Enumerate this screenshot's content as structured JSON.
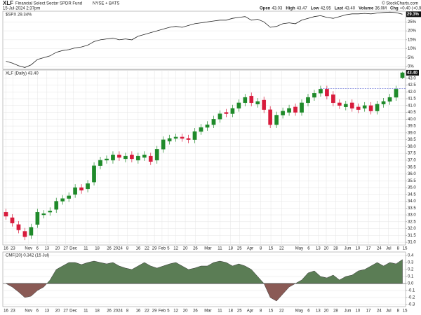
{
  "header": {
    "symbol": "XLF",
    "name": "Financial Select Sector SPDR Fund",
    "exchange": "NYSE + BATS",
    "source": "© StockCharts.com",
    "timestamp": "15-Jul-2024 2:37pm",
    "quote": [
      {
        "label": "Open",
        "value": "43.03"
      },
      {
        "label": "High",
        "value": "43.47"
      },
      {
        "label": "Low",
        "value": "42.95"
      },
      {
        "label": "Last",
        "value": "43.40"
      },
      {
        "label": "Volume",
        "value": "36.0M"
      },
      {
        "label": "Chg",
        "value": "+0.40 (+0.93%)"
      }
    ]
  },
  "chart_data": [
    {
      "type": "line",
      "title": "$SPX 29.34%",
      "last_label": "29.3%",
      "color": "#222222",
      "xlim": [
        -0.5,
        63.5
      ],
      "ylim": [
        -1.5,
        31
      ],
      "grid": true,
      "yticks": [
        {
          "value": 25,
          "label": "25%"
        },
        {
          "value": 20,
          "label": "20%"
        },
        {
          "value": 15,
          "label": "15%"
        },
        {
          "value": 10,
          "label": "10%"
        },
        {
          "value": 5,
          "label": "5%"
        },
        {
          "value": 0,
          "label": "0%"
        }
      ],
      "series": [
        {
          "name": "$SPX",
          "values": [
            3,
            2,
            0.5,
            -0.5,
            1,
            4,
            5,
            6,
            8,
            9,
            9.5,
            10.5,
            11,
            12,
            14,
            15,
            15.5,
            16,
            15,
            15.5,
            15,
            17,
            18,
            19,
            20,
            21,
            22,
            22.5,
            22,
            23,
            24,
            24.5,
            25,
            25.5,
            26,
            26,
            27,
            27.5,
            28,
            26,
            26.5,
            25,
            22,
            22.5,
            24,
            24.5,
            24,
            26,
            27,
            28,
            28.5,
            27.5,
            27,
            28,
            29,
            29.5,
            29.5,
            29.8,
            29.5,
            30,
            30.3,
            30.5,
            30.2,
            29.3
          ]
        }
      ]
    },
    {
      "type": "candlestick",
      "title": "XLF (Daily) 43.40",
      "last_label": "43.40",
      "up_color": "#1f8a2a",
      "down_color": "#d81b3c",
      "xlim": [
        -0.5,
        63.5
      ],
      "ylim": [
        30.8,
        43.6
      ],
      "grid": true,
      "yticks": [
        {
          "value": 43,
          "label": "43.0"
        },
        42.5,
        {
          "value": 42,
          "label": "42.0"
        },
        41.5,
        {
          "value": 41,
          "label": "41.0"
        },
        40.5,
        {
          "value": 40,
          "label": "40.0"
        },
        39.5,
        {
          "value": 39,
          "label": "39.0"
        },
        38.5,
        {
          "value": 38,
          "label": "38.0"
        },
        37.5,
        {
          "value": 37,
          "label": "37.0"
        },
        36.5,
        {
          "value": 36,
          "label": "36.0"
        },
        35.5,
        {
          "value": 35,
          "label": "35.0"
        },
        34.5,
        {
          "value": 34,
          "label": "34.0"
        },
        33.5,
        {
          "value": 33,
          "label": "33.0"
        },
        32.5,
        {
          "value": 32,
          "label": "32.0"
        },
        31.5,
        {
          "value": 31,
          "label": "31.0"
        }
      ],
      "xticks": [
        {
          "value": 0,
          "label": "16"
        },
        {
          "value": 1.1,
          "label": "23"
        },
        {
          "value": 3.6,
          "label": "Nov"
        },
        {
          "value": 5,
          "label": "6"
        },
        {
          "value": 6.5,
          "label": "13"
        },
        {
          "value": 8.2,
          "label": "20"
        },
        {
          "value": 9.5,
          "label": "27"
        },
        {
          "value": 10.7,
          "label": "Dec"
        },
        {
          "value": 12.7,
          "label": "11"
        },
        {
          "value": 14.5,
          "label": "18"
        },
        {
          "value": 16.4,
          "label": "26"
        },
        {
          "value": 17.8,
          "label": "2024"
        },
        {
          "value": 19.3,
          "label": "8"
        },
        {
          "value": 21,
          "label": "16"
        },
        {
          "value": 22.4,
          "label": "22"
        },
        {
          "value": 23.6,
          "label": "29"
        },
        {
          "value": 24.8,
          "label": "Feb"
        },
        {
          "value": 25.8,
          "label": "5"
        },
        {
          "value": 27,
          "label": "12"
        },
        {
          "value": 28.5,
          "label": "20"
        },
        {
          "value": 30.1,
          "label": "26"
        },
        {
          "value": 32.1,
          "label": "Mar"
        },
        {
          "value": 34,
          "label": "11"
        },
        {
          "value": 35.7,
          "label": "18"
        },
        {
          "value": 37.1,
          "label": "25"
        },
        {
          "value": 38.8,
          "label": "Apr"
        },
        {
          "value": 40.5,
          "label": "8"
        },
        {
          "value": 42.1,
          "label": "15"
        },
        {
          "value": 43.8,
          "label": "22"
        },
        {
          "value": 46.6,
          "label": "May"
        },
        {
          "value": 48.1,
          "label": "6"
        },
        {
          "value": 49.6,
          "label": "13"
        },
        {
          "value": 50.9,
          "label": "20"
        },
        {
          "value": 52.4,
          "label": "28"
        },
        {
          "value": 54.3,
          "label": "Jun"
        },
        {
          "value": 55.9,
          "label": "10"
        },
        {
          "value": 57.6,
          "label": "17"
        },
        {
          "value": 59.3,
          "label": "24"
        },
        {
          "value": 60.8,
          "label": "Jul"
        },
        {
          "value": 62.3,
          "label": "8"
        },
        {
          "value": 63.4,
          "label": "15"
        }
      ],
      "hline": {
        "y": 42.25,
        "from": 50,
        "color": "#3340c8"
      },
      "open": [
        33.2,
        32.8,
        32.3,
        31.8,
        31.5,
        32.3,
        33.0,
        33.2,
        33.4,
        34.0,
        34.2,
        34.5,
        35.0,
        34.9,
        35.4,
        36.6,
        37.0,
        37.0,
        37.4,
        37.1,
        37.4,
        37.0,
        37.2,
        37.3,
        37.0,
        37.8,
        38.4,
        38.6,
        38.7,
        38.6,
        38.5,
        39.1,
        39.4,
        39.6,
        40.0,
        40.5,
        40.4,
        40.8,
        41.2,
        41.7,
        41.1,
        41.4,
        40.7,
        39.6,
        40.3,
        40.5,
        40.9,
        40.5,
        41.2,
        41.6,
        41.9,
        42.2,
        41.8,
        41.2,
        40.9,
        41.2,
        40.9,
        40.8,
        41.0,
        40.6,
        41.1,
        41.3,
        41.6,
        43.03
      ],
      "high": [
        33.45,
        33.05,
        32.55,
        32.05,
        32.35,
        33.45,
        33.35,
        33.55,
        34.25,
        34.45,
        34.65,
        35.25,
        35.25,
        35.55,
        36.85,
        37.25,
        37.35,
        37.65,
        37.65,
        37.55,
        37.65,
        37.55,
        37.65,
        37.55,
        38.05,
        38.75,
        38.85,
        38.95,
        38.95,
        38.85,
        39.35,
        39.65,
        39.85,
        40.25,
        40.65,
        40.75,
        41.05,
        41.45,
        41.85,
        41.95,
        41.55,
        41.65,
        40.95,
        40.55,
        40.85,
        41.05,
        41.15,
        41.45,
        41.85,
        42.15,
        42.45,
        42.45,
        42.05,
        41.45,
        41.35,
        41.45,
        41.15,
        41.25,
        41.25,
        41.35,
        41.55,
        41.85,
        42.45,
        43.47
      ],
      "low": [
        32.65,
        32.15,
        31.65,
        31.15,
        31.25,
        32.05,
        32.75,
        32.95,
        33.15,
        33.75,
        33.95,
        34.25,
        34.55,
        34.65,
        35.15,
        36.35,
        36.75,
        36.75,
        36.95,
        36.85,
        36.85,
        36.75,
        36.95,
        36.65,
        36.75,
        37.55,
        38.15,
        38.35,
        38.35,
        38.25,
        38.25,
        38.85,
        39.15,
        39.35,
        39.75,
        40.15,
        40.15,
        40.55,
        40.95,
        40.95,
        40.85,
        40.45,
        39.35,
        39.35,
        40.05,
        40.25,
        40.25,
        40.25,
        40.95,
        41.35,
        41.65,
        41.45,
        40.95,
        40.75,
        40.65,
        40.55,
        40.45,
        40.55,
        40.35,
        40.35,
        40.85,
        41.05,
        41.35,
        42.95
      ],
      "close": [
        32.9,
        32.4,
        31.9,
        31.4,
        32.1,
        33.2,
        33.1,
        33.3,
        34.0,
        34.2,
        34.4,
        35.0,
        34.8,
        35.3,
        36.6,
        37.0,
        37.1,
        37.4,
        37.2,
        37.3,
        37.1,
        37.3,
        37.4,
        36.9,
        37.8,
        38.5,
        38.6,
        38.7,
        38.6,
        38.5,
        39.1,
        39.4,
        39.6,
        40.0,
        40.4,
        40.4,
        40.8,
        41.2,
        41.6,
        41.2,
        41.3,
        40.7,
        39.6,
        40.3,
        40.6,
        40.8,
        40.5,
        41.2,
        41.6,
        41.9,
        42.2,
        41.7,
        41.2,
        41.0,
        41.1,
        40.8,
        40.7,
        41.0,
        40.6,
        41.1,
        41.3,
        41.6,
        42.2,
        43.4
      ]
    },
    {
      "type": "area",
      "title": "CMF(20) 0.342 (15 Jul)",
      "pos_color": "#5b7d55",
      "neg_color": "#8a5a55",
      "xlim": [
        -0.5,
        63.5
      ],
      "ylim": [
        -0.33,
        0.45
      ],
      "grid": true,
      "yticks": [
        0.4,
        0.3,
        0.2,
        0.1,
        {
          "value": 0,
          "label": "0.0"
        },
        -0.1,
        -0.2,
        -0.3
      ],
      "values": [
        0.0,
        -0.05,
        -0.12,
        -0.2,
        -0.18,
        -0.1,
        -0.05,
        0.05,
        0.2,
        0.25,
        0.3,
        0.3,
        0.27,
        0.3,
        0.32,
        0.3,
        0.28,
        0.3,
        0.25,
        0.22,
        0.2,
        0.25,
        0.3,
        0.25,
        0.22,
        0.25,
        0.28,
        0.3,
        0.25,
        0.2,
        0.22,
        0.25,
        0.25,
        0.3,
        0.32,
        0.3,
        0.25,
        0.28,
        0.25,
        0.2,
        0.1,
        0.0,
        -0.2,
        -0.25,
        -0.15,
        -0.05,
        0.0,
        0.05,
        0.15,
        0.18,
        0.1,
        0.08,
        0.12,
        0.05,
        0.1,
        0.12,
        0.18,
        0.2,
        0.25,
        0.3,
        0.25,
        0.3,
        0.28,
        0.342
      ]
    }
  ]
}
